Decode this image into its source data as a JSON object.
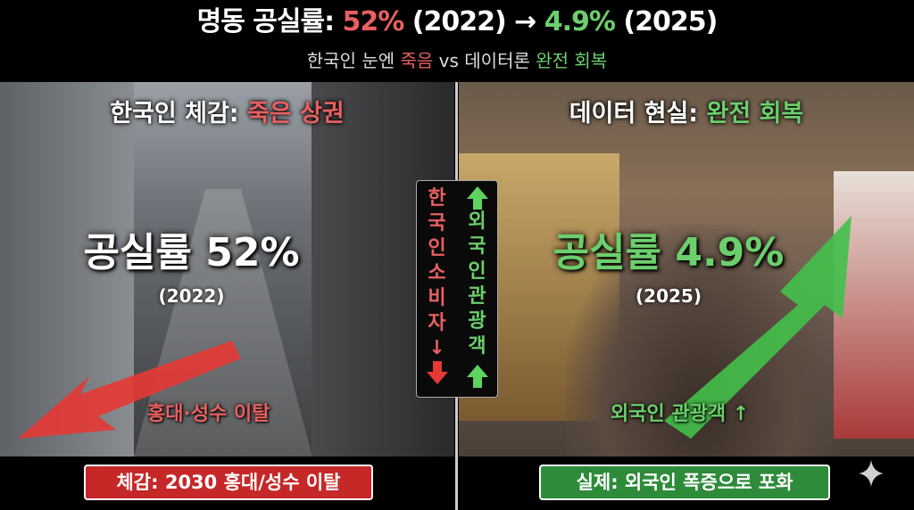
{
  "header": {
    "title_prefix": "명동 공실률: ",
    "title_old": "52%",
    "title_old_year": " (2022) → ",
    "title_new": "4.9%",
    "title_new_year": " (2025)",
    "subtitle_a": "한국인 눈엔 ",
    "subtitle_dead": "죽음",
    "subtitle_b": " vs 데이터론 ",
    "subtitle_recover": "완전 회복"
  },
  "left": {
    "caption_prefix": "한국인 체감: ",
    "caption_highlight": "죽은 상권",
    "vacancy": "공실률 52%",
    "year": "(2022)",
    "arrow_label": "홍대·성수 이탈",
    "bottom_label": "체감: 2030 홍대/성수 이탈"
  },
  "right": {
    "caption_prefix": "데이터 현실: ",
    "caption_highlight": "완전 회복",
    "vacancy": "공실률 4.9%",
    "year": "(2025)",
    "arrow_label": "외국인 관광객 ↑",
    "bottom_label": "실제: 외국인 폭증으로 포화"
  },
  "middle": {
    "left_chars": [
      "한",
      "국",
      "인",
      "소",
      "비",
      "자",
      "↓"
    ],
    "right_chars": [
      "외",
      "국",
      "인",
      "관",
      "광",
      "객"
    ],
    "down_arrow": "arrow-down-icon",
    "up_arrow": "arrow-up-icon"
  },
  "colors": {
    "red": "#e86060",
    "green": "#6ccf6c",
    "red_box": "#c62828",
    "green_box": "#2e8b3a"
  }
}
